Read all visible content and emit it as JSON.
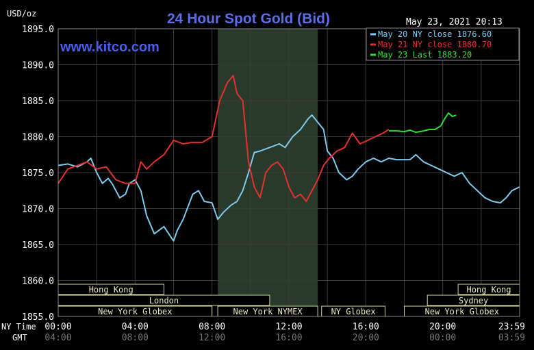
{
  "chart_data": {
    "type": "line",
    "title": "24 Hour Spot Gold (Bid)",
    "watermark": "www.kitco.com",
    "ylabel": "USD/oz",
    "timestamp": "May 23, 2021 20:13",
    "ylim": [
      1855.0,
      1895.0
    ],
    "y_ticks": [
      "1895.0",
      "1890.0",
      "1885.0",
      "1880.0",
      "1875.0",
      "1870.0",
      "1865.0",
      "1860.0",
      "1855.0"
    ],
    "x_range_hours": [
      0,
      24
    ],
    "x_row1_label": "NY Time",
    "x_row2_label": "GMT",
    "x_ticks_ny": [
      "00:00",
      "04:00",
      "08:00",
      "12:00",
      "16:00",
      "20:00",
      "23:59"
    ],
    "x_ticks_gmt": [
      "04:00",
      "08:00",
      "12:00",
      "16:00",
      "20:00",
      "00:00",
      "03:59"
    ],
    "highlight_region_hours": [
      8.3,
      13.5
    ],
    "legend": [
      {
        "label": "May 20 NY close 1876.60",
        "color": "#7ecbf0"
      },
      {
        "label": "May 21 NY close 1880.70",
        "color": "#e53030"
      },
      {
        "label": "May 23 Last 1883.20",
        "color": "#30e030"
      }
    ],
    "sessions": [
      {
        "label": "Hong Kong",
        "row": 0,
        "start": 0,
        "end": 5.5
      },
      {
        "label": "London",
        "row": 1,
        "start": 0,
        "end": 11.0
      },
      {
        "label": "New York Globex",
        "row": 2,
        "start": 0,
        "end": 8.0
      },
      {
        "label": "New York NYMEX",
        "row": 2,
        "start": 8.3,
        "end": 13.5
      },
      {
        "label": "NY Globex",
        "row": 2,
        "start": 13.7,
        "end": 17.0
      },
      {
        "label": "Hong Kong",
        "row": 0,
        "start": 20.8,
        "end": 24
      },
      {
        "label": "Sydney",
        "row": 1,
        "start": 19.2,
        "end": 24
      },
      {
        "label": "New York Globex",
        "row": 2,
        "start": 18.0,
        "end": 24
      }
    ],
    "series": [
      {
        "name": "May 20",
        "color": "#7ecbf0",
        "x": [
          0,
          0.5,
          1,
          1.5,
          1.7,
          2,
          2.3,
          2.6,
          2.8,
          3,
          3.2,
          3.5,
          3.7,
          4,
          4.3,
          4.6,
          5,
          5.5,
          6,
          6.2,
          6.5,
          7,
          7.3,
          7.6,
          8,
          8.3,
          8.6,
          9,
          9.3,
          9.6,
          9.9,
          10.2,
          10.5,
          11,
          11.5,
          11.8,
          12.2,
          12.6,
          13,
          13.2,
          13.5,
          13.8,
          14,
          14.3,
          14.6,
          15,
          15.3,
          15.6,
          16,
          16.4,
          16.8,
          17.2,
          17.6,
          18,
          18.3,
          18.6,
          19,
          19.4,
          19.8,
          20.2,
          20.6,
          21,
          21.4,
          21.8,
          22.2,
          22.6,
          23,
          23.3,
          23.6,
          23.99
        ],
        "y": [
          1876.0,
          1876.2,
          1875.8,
          1876.5,
          1877.0,
          1875.0,
          1873.5,
          1874.2,
          1873.5,
          1872.5,
          1871.5,
          1872.0,
          1873.5,
          1874.0,
          1872.5,
          1869.0,
          1866.5,
          1867.5,
          1865.5,
          1867.0,
          1868.5,
          1872.0,
          1872.5,
          1871.0,
          1870.8,
          1868.5,
          1869.5,
          1870.5,
          1871.0,
          1872.5,
          1875.0,
          1877.8,
          1878.0,
          1878.5,
          1879.0,
          1878.5,
          1880.0,
          1881.0,
          1882.5,
          1883.0,
          1882.0,
          1881.0,
          1878.0,
          1877.0,
          1875.0,
          1874.0,
          1874.5,
          1875.5,
          1876.5,
          1877.0,
          1876.5,
          1877.0,
          1876.8,
          1876.8,
          1876.8,
          1877.5,
          1876.5,
          1876.0,
          1875.5,
          1875.0,
          1874.5,
          1875.0,
          1873.5,
          1872.5,
          1871.5,
          1871.0,
          1870.8,
          1871.5,
          1872.5,
          1873.0
        ]
      },
      {
        "name": "May 21",
        "color": "#e53030",
        "x": [
          0,
          0.5,
          1,
          1.5,
          2,
          2.5,
          3,
          3.5,
          4,
          4.3,
          4.6,
          5,
          5.5,
          6,
          6.5,
          7,
          7.5,
          8,
          8.4,
          8.8,
          9.1,
          9.3,
          9.6,
          9.9,
          10.2,
          10.5,
          10.8,
          11.1,
          11.4,
          11.7,
          12,
          12.3,
          12.6,
          12.9,
          13.2,
          13.5,
          13.8,
          14.1,
          14.5,
          14.9,
          15.3,
          15.7,
          16.1,
          16.5,
          16.9,
          17.2
        ],
        "y": [
          1873.5,
          1875.5,
          1876.0,
          1876.5,
          1875.5,
          1875.8,
          1874.0,
          1873.5,
          1873.5,
          1876.5,
          1875.5,
          1876.5,
          1877.5,
          1879.5,
          1879.0,
          1879.2,
          1879.2,
          1880.0,
          1885.0,
          1887.5,
          1888.5,
          1886.0,
          1885.0,
          1876.5,
          1873.0,
          1871.5,
          1875.0,
          1876.0,
          1876.5,
          1875.5,
          1873.0,
          1871.5,
          1872.0,
          1871.0,
          1872.5,
          1874.0,
          1876.0,
          1877.0,
          1878.0,
          1878.5,
          1880.5,
          1879.0,
          1879.5,
          1880.0,
          1880.5,
          1881.0
        ]
      },
      {
        "name": "May 23",
        "color": "#30e030",
        "x": [
          17.2,
          17.6,
          18.0,
          18.3,
          18.6,
          19.0,
          19.3,
          19.6,
          19.9,
          20.1,
          20.3,
          20.5,
          20.7
        ],
        "y": [
          1880.8,
          1880.8,
          1880.7,
          1880.9,
          1880.6,
          1880.8,
          1881.0,
          1881.0,
          1881.5,
          1882.5,
          1883.3,
          1882.8,
          1883.0
        ]
      }
    ]
  }
}
